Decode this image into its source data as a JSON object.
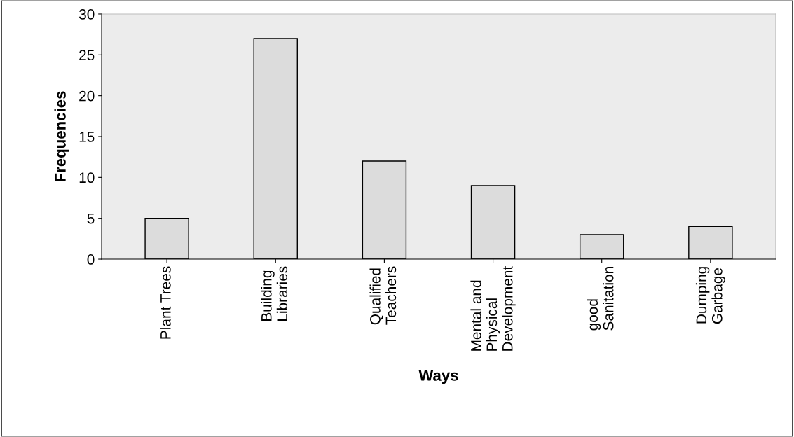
{
  "chart_data": {
    "type": "bar",
    "xlabel": "Ways",
    "ylabel": "Frequencies",
    "categories": [
      "Plant Trees",
      "Building\nLibraries",
      "Qualified\nTeachers",
      "Mental and\nPhysical\nDevelopment",
      "good\nSanitation",
      "Dumping\nGarbage"
    ],
    "values": [
      5,
      27,
      12,
      9,
      3,
      4
    ],
    "color": "#dcdcdc",
    "ylim": [
      0,
      30
    ],
    "yticks": [
      0,
      5,
      10,
      15,
      20,
      25,
      30
    ],
    "grid": false,
    "legend": false
  }
}
